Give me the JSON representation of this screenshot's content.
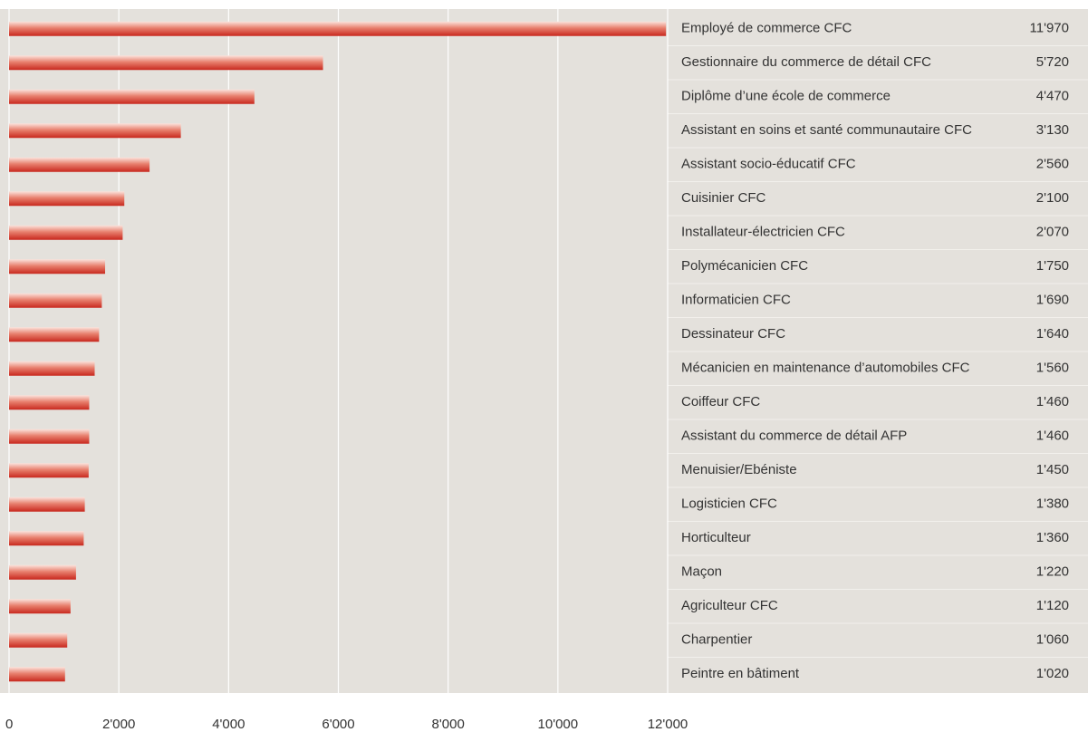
{
  "chart_data": {
    "type": "bar",
    "orientation": "horizontal",
    "categories": [
      "Employé de commerce CFC",
      "Gestionnaire du commerce de détail CFC",
      "Diplôme d’une école de commerce",
      "Assistant en soins et santé communautaire CFC",
      "Assistant socio-éducatif CFC",
      "Cuisinier CFC",
      "Installateur-électricien CFC",
      "Polymécanicien CFC",
      "Informaticien CFC",
      "Dessinateur CFC",
      "Mécanicien en maintenance d’automobiles CFC",
      "Coiffeur CFC",
      "Assistant du commerce de détail AFP",
      "Menuisier/Ebéniste",
      "Logisticien CFC",
      "Horticulteur",
      "Maçon",
      "Agriculteur CFC",
      "Charpentier",
      "Peintre en bâtiment"
    ],
    "values": [
      11970,
      5720,
      4470,
      3130,
      2560,
      2100,
      2070,
      1750,
      1690,
      1640,
      1560,
      1460,
      1460,
      1450,
      1380,
      1360,
      1220,
      1120,
      1060,
      1020
    ],
    "value_labels": [
      "11'970",
      "5'720",
      "4'470",
      "3'130",
      "2'560",
      "2'100",
      "2'070",
      "1'750",
      "1'690",
      "1'640",
      "1'560",
      "1'460",
      "1'460",
      "1'450",
      "1'380",
      "1'360",
      "1'220",
      "1'120",
      "1'060",
      "1'020"
    ],
    "color": "#c8281e",
    "xlim": [
      0,
      12000
    ],
    "xticks": [
      0,
      {
        "value": 2000,
        "label": "2'000"
      },
      {
        "value": 4000,
        "label": "4'000"
      },
      {
        "value": 6000,
        "label": "6'000"
      },
      {
        "value": 8000,
        "label": "8'000"
      },
      {
        "value": 10000,
        "label": "10'000"
      },
      {
        "value": 12000,
        "label": "12'000"
      }
    ],
    "grid": true
  }
}
